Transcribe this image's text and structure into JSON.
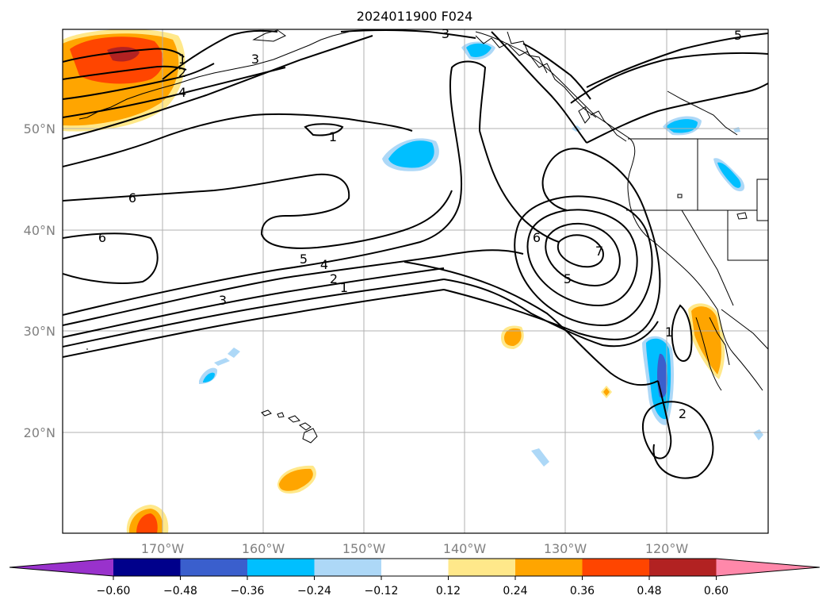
{
  "title": "2024011900 F024",
  "axes": {
    "lat_labels": [
      "50°N",
      "40°N",
      "30°N",
      "20°N"
    ],
    "lon_labels": [
      "170°W",
      "160°W",
      "150°W",
      "140°W",
      "130°W",
      "120°W"
    ]
  },
  "colorbar": {
    "ticks": [
      "−0.60",
      "−0.48",
      "−0.36",
      "−0.24",
      "−0.12",
      "0.12",
      "0.24",
      "0.36",
      "0.48",
      "0.60"
    ],
    "colors": [
      "#9932cc",
      "#00008b",
      "#3a5fcd",
      "#00bfff",
      "#add8f7",
      "#ffffff",
      "#ffe88a",
      "#ffa500",
      "#ff4500",
      "#b22222",
      "#ff88aa"
    ]
  },
  "contour_labels": [
    "3",
    "5",
    "1",
    "2",
    "4",
    "3",
    "1",
    "6",
    "6",
    "5",
    "4",
    "2",
    "1",
    "3",
    "6",
    "7",
    "5",
    "1",
    "2"
  ]
}
